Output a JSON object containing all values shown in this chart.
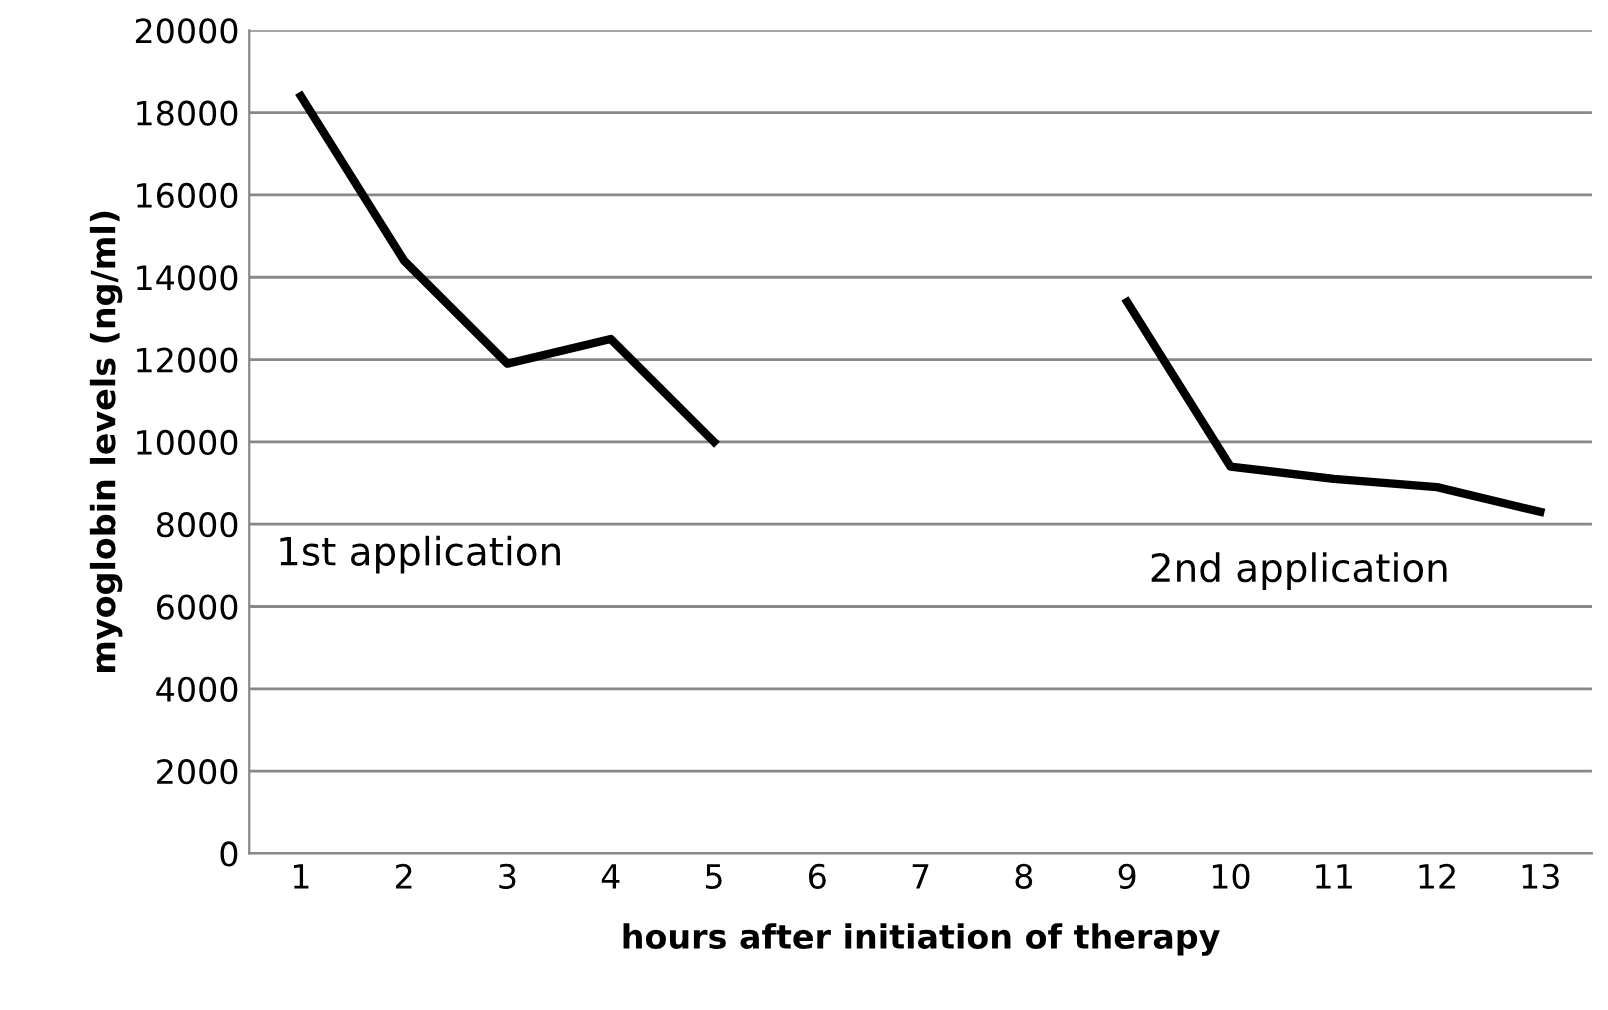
{
  "chart_data": {
    "type": "line",
    "xlabel": "hours after initiation of therapy",
    "ylabel": "myoglobin levels (ng/ml)",
    "categories": [
      "1",
      "2",
      "3",
      "4",
      "5",
      "6",
      "7",
      "8",
      "9",
      "10",
      "11",
      "12",
      "13"
    ],
    "series": [
      {
        "color": "#000000",
        "values": [
          18400,
          14400,
          11900,
          12500,
          10000,
          null,
          null,
          null,
          13400,
          9400,
          9100,
          8900,
          8300
        ]
      }
    ],
    "ylim": [
      0,
      20000
    ],
    "yticks": [
      0,
      2000,
      4000,
      6000,
      8000,
      10000,
      12000,
      14000,
      16000,
      18000,
      20000
    ],
    "grid": "y",
    "marker": "none",
    "line_style": "solid",
    "annotations": [
      "1st application",
      "2nd application"
    ]
  }
}
